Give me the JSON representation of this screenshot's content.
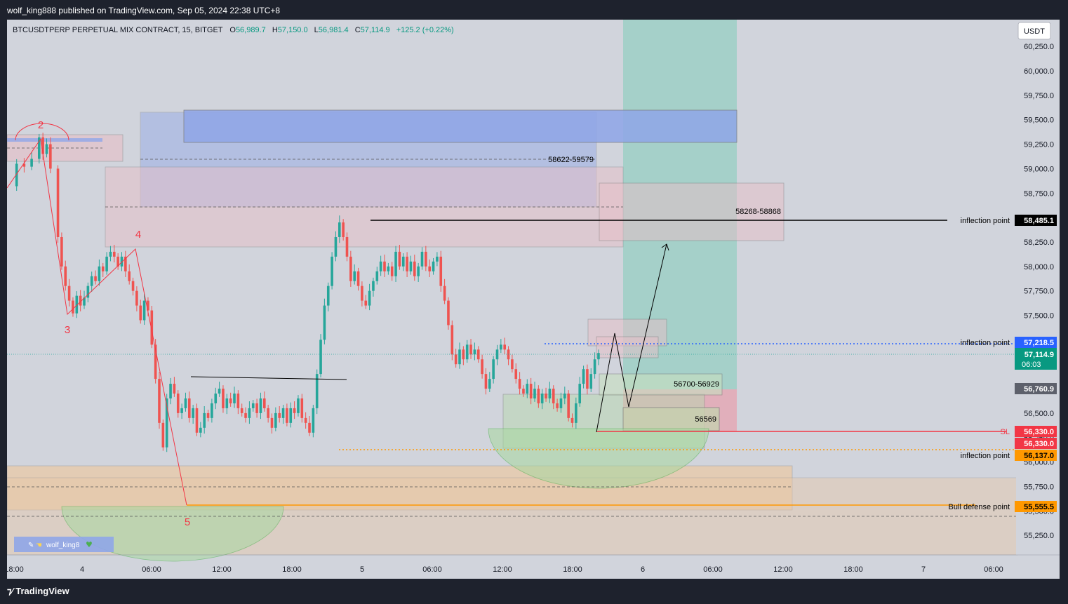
{
  "header": {
    "published": "wolf_king888 published on TradingView.com, Sep 05, 2024 22:38 UTC+8"
  },
  "footer": {
    "brand": "TradingView",
    "brand_icon": "tradingview-logo-icon"
  },
  "symbol_bar": {
    "symbol": "BTCUSDTPERP PERPETUAL MIX CONTRACT, 15, BITGET",
    "o_label": "O",
    "o_value": "56,989.7",
    "h_label": "H",
    "h_value": "57,150.0",
    "l_label": "L",
    "l_value": "56,981.4",
    "c_label": "C",
    "c_value": "57,114.9",
    "change": "+125.2 (+0.22%)"
  },
  "currency_button": "USDT",
  "watermark": {
    "text": "wolf_king8",
    "icons": [
      "pencil-icon",
      "hand-icon",
      "heart-icon"
    ]
  },
  "colors": {
    "background": "#d1d4dc",
    "bull": "#26a69a",
    "bear": "#ef5350",
    "drawing_red": "#f23645",
    "orange": "#ff9800",
    "blue_zone": "#8fa6e8",
    "target_zone": "#9ecfc6",
    "current_price_tag": "#089981",
    "inflection_blue": "#2962ff"
  },
  "chart_data": {
    "type": "candlestick",
    "title": "BTCUSDTPERP PERPETUAL MIX CONTRACT, 15, BITGET",
    "currency": "USDT",
    "interval": "15",
    "ylim": [
      55050,
      60400
    ],
    "y_ticks": [
      "60,250.0",
      "60,000.0",
      "59,750.0",
      "59,500.0",
      "59,250.0",
      "59,000.0",
      "58,750.0",
      "58,500.0",
      "58,250.0",
      "58,000.0",
      "57,750.0",
      "57,500.0",
      "57,250.0",
      "57,000.0",
      "56,750.0",
      "56,500.0",
      "56,250.0",
      "56,000.0",
      "55,750.0",
      "55,500.0",
      "55,250.0"
    ],
    "x_ticks": [
      "18:00",
      "4",
      "06:00",
      "12:00",
      "18:00",
      "5",
      "06:00",
      "12:00",
      "18:00",
      "6",
      "06:00",
      "12:00",
      "18:00",
      "7",
      "06:00"
    ],
    "price_path": [
      [
        0,
        58820
      ],
      [
        2,
        59050
      ],
      [
        4,
        59020
      ],
      [
        6,
        59100
      ],
      [
        8,
        59320
      ],
      [
        9,
        59150
      ],
      [
        10,
        59250
      ],
      [
        11,
        59000
      ],
      [
        13,
        58300
      ],
      [
        14,
        58000
      ],
      [
        15,
        57800
      ],
      [
        16,
        57650
      ],
      [
        17,
        57520
      ],
      [
        18,
        57700
      ],
      [
        19,
        57600
      ],
      [
        20,
        57680
      ],
      [
        21,
        57800
      ],
      [
        22,
        57900
      ],
      [
        23,
        57850
      ],
      [
        24,
        58000
      ],
      [
        25,
        57950
      ],
      [
        26,
        58100
      ],
      [
        27,
        58150
      ],
      [
        28,
        58100
      ],
      [
        29,
        58000
      ],
      [
        30,
        58100
      ],
      [
        31,
        57950
      ],
      [
        32,
        57850
      ],
      [
        33,
        57750
      ],
      [
        34,
        57600
      ],
      [
        35,
        57450
      ],
      [
        36,
        57650
      ],
      [
        37,
        57550
      ],
      [
        38,
        57200
      ],
      [
        39,
        56850
      ],
      [
        40,
        56400
      ],
      [
        41,
        56150
      ],
      [
        42,
        56650
      ],
      [
        43,
        56800
      ],
      [
        44,
        56700
      ],
      [
        45,
        56500
      ],
      [
        46,
        56550
      ],
      [
        47,
        56650
      ],
      [
        48,
        56450
      ],
      [
        49,
        56550
      ],
      [
        50,
        56300
      ],
      [
        51,
        56350
      ],
      [
        52,
        56500
      ],
      [
        53,
        56450
      ],
      [
        54,
        56600
      ],
      [
        55,
        56700
      ],
      [
        56,
        56750
      ],
      [
        57,
        56550
      ],
      [
        58,
        56650
      ],
      [
        59,
        56600
      ],
      [
        60,
        56700
      ],
      [
        61,
        56550
      ],
      [
        62,
        56500
      ],
      [
        63,
        56450
      ],
      [
        64,
        56550
      ],
      [
        65,
        56600
      ],
      [
        66,
        56500
      ],
      [
        67,
        56650
      ],
      [
        68,
        56550
      ],
      [
        69,
        56450
      ],
      [
        70,
        56350
      ],
      [
        71,
        56500
      ],
      [
        72,
        56450
      ],
      [
        73,
        56550
      ],
      [
        74,
        56400
      ],
      [
        75,
        56550
      ],
      [
        76,
        56500
      ],
      [
        77,
        56650
      ],
      [
        78,
        56450
      ],
      [
        79,
        56400
      ],
      [
        80,
        56300
      ],
      [
        81,
        56550
      ],
      [
        82,
        56900
      ],
      [
        83,
        57250
      ],
      [
        84,
        57600
      ],
      [
        85,
        57800
      ],
      [
        86,
        58100
      ],
      [
        87,
        58300
      ],
      [
        88,
        58450
      ],
      [
        89,
        58300
      ],
      [
        90,
        58100
      ],
      [
        91,
        57850
      ],
      [
        92,
        57950
      ],
      [
        93,
        57800
      ],
      [
        94,
        57650
      ],
      [
        95,
        57600
      ],
      [
        96,
        57750
      ],
      [
        97,
        57850
      ],
      [
        98,
        57950
      ],
      [
        99,
        58050
      ],
      [
        100,
        57950
      ],
      [
        101,
        58000
      ],
      [
        102,
        57900
      ],
      [
        103,
        58150
      ],
      [
        104,
        58000
      ],
      [
        105,
        58100
      ],
      [
        106,
        57950
      ],
      [
        107,
        58050
      ],
      [
        108,
        57900
      ],
      [
        109,
        58000
      ],
      [
        110,
        58150
      ],
      [
        111,
        58000
      ],
      [
        112,
        57950
      ],
      [
        113,
        58050
      ],
      [
        114,
        58100
      ],
      [
        115,
        57800
      ],
      [
        116,
        57650
      ],
      [
        117,
        57400
      ],
      [
        118,
        57100
      ],
      [
        119,
        57000
      ],
      [
        120,
        57150
      ],
      [
        121,
        57050
      ],
      [
        122,
        57200
      ],
      [
        123,
        57100
      ],
      [
        124,
        57150
      ],
      [
        125,
        57050
      ],
      [
        126,
        56900
      ],
      [
        127,
        56750
      ],
      [
        128,
        56850
      ],
      [
        129,
        57050
      ],
      [
        130,
        57150
      ],
      [
        131,
        57200
      ],
      [
        132,
        57150
      ],
      [
        133,
        57050
      ],
      [
        134,
        56950
      ],
      [
        135,
        56850
      ],
      [
        136,
        56750
      ],
      [
        137,
        56700
      ],
      [
        138,
        56800
      ],
      [
        139,
        56650
      ],
      [
        140,
        56750
      ],
      [
        141,
        56600
      ],
      [
        142,
        56700
      ],
      [
        143,
        56650
      ],
      [
        144,
        56750
      ],
      [
        145,
        56600
      ],
      [
        146,
        56550
      ],
      [
        147,
        56650
      ],
      [
        148,
        56700
      ],
      [
        149,
        56450
      ],
      [
        150,
        56400
      ],
      [
        151,
        56600
      ],
      [
        152,
        56800
      ],
      [
        153,
        56950
      ],
      [
        154,
        56750
      ],
      [
        155,
        56900
      ],
      [
        156,
        57050
      ],
      [
        157,
        57114.9
      ]
    ],
    "annotations": [
      {
        "label": "2",
        "type": "wave-label"
      },
      {
        "label": "3",
        "type": "wave-label"
      },
      {
        "label": "4",
        "type": "wave-label"
      },
      {
        "label": "5",
        "type": "wave-label"
      },
      {
        "label": "58622-59579",
        "type": "zone-label",
        "range": [
          58622,
          59579
        ]
      },
      {
        "label": "58268-58868",
        "type": "zone-label",
        "range": [
          58268,
          58868
        ]
      },
      {
        "label": "56700-56929",
        "type": "zone-label",
        "range": [
          56700,
          56929
        ]
      },
      {
        "label": "56569",
        "type": "zone-label",
        "value": 56569
      },
      {
        "label": "inflection point",
        "price": "58,485.1",
        "value": 58485.1
      },
      {
        "label": "inflection point",
        "price": "57,218.5",
        "value": 57218.5
      },
      {
        "label": "inflection point",
        "price": "56,137.0",
        "value": 56137.0
      },
      {
        "label": "SL",
        "price": "56,330.0",
        "value": 56330.0
      },
      {
        "label": "Bull defense point",
        "price": "55,555.5",
        "value": 55555.5
      }
    ],
    "price_tags": {
      "current_price": "57,114.9",
      "countdown": "06:03",
      "crosshair": "56,760.9",
      "sl_extra": "56,330.0"
    },
    "grid": false,
    "legend": "none"
  }
}
